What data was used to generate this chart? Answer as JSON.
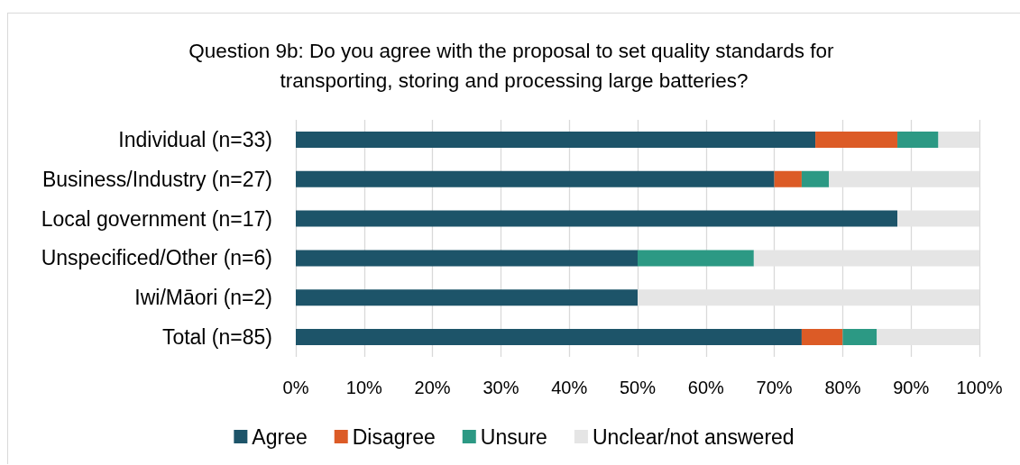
{
  "chart_data": {
    "type": "bar",
    "orientation": "horizontal",
    "stacked": true,
    "title": "Question 9b: Do you agree with the proposal to set quality standards for transporting, storing and processing large batteries?",
    "categories": [
      "Individual (n=33)",
      "Business/Industry (n=27)",
      "Local government (n=17)",
      "Unspecificed/Other (n=6)",
      "Iwi/Māori (n=2)",
      "Total (n=85)"
    ],
    "series": [
      {
        "name": "Agree",
        "color": "#1d5469",
        "values": [
          76,
          70,
          88,
          50,
          50,
          74
        ]
      },
      {
        "name": "Disagree",
        "color": "#dc5b26",
        "values": [
          12,
          4,
          0,
          0,
          0,
          6
        ]
      },
      {
        "name": "Unsure",
        "color": "#2c9984",
        "values": [
          6,
          4,
          0,
          17,
          0,
          5
        ]
      },
      {
        "name": "Unclear/not answered",
        "color": "#e5e5e5",
        "values": [
          6,
          22,
          12,
          33,
          50,
          15
        ]
      }
    ],
    "xlim": [
      0,
      100
    ],
    "xticks": [
      {
        "value": 0,
        "label": "0%"
      },
      {
        "value": 10,
        "label": "10%"
      },
      {
        "value": 20,
        "label": "20%"
      },
      {
        "value": 30,
        "label": "30%"
      },
      {
        "value": 40,
        "label": "40%"
      },
      {
        "value": 50,
        "label": "50%"
      },
      {
        "value": 60,
        "label": "60%"
      },
      {
        "value": 70,
        "label": "70%"
      },
      {
        "value": 80,
        "label": "80%"
      },
      {
        "value": 90,
        "label": "90%"
      },
      {
        "value": 100,
        "label": "100%"
      }
    ],
    "grid": "x",
    "legend": "bottom"
  }
}
